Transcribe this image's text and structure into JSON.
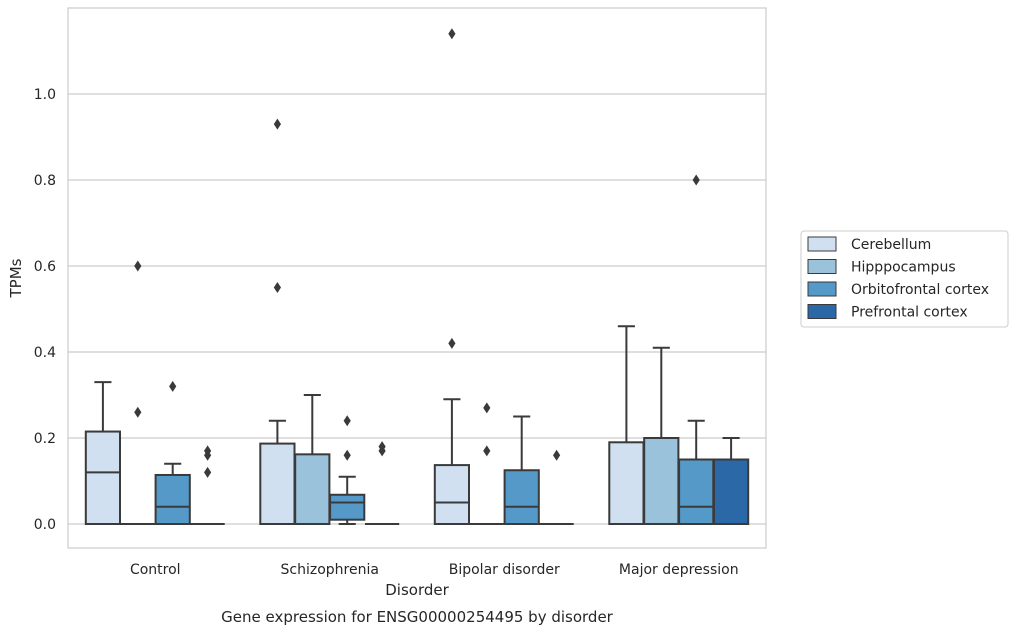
{
  "chart_data": {
    "type": "box",
    "title": "",
    "caption": "Gene expression for ENSG00000254495 by disorder",
    "xlabel": "Disorder",
    "ylabel": "TPMs",
    "ylim": [
      -0.055,
      1.2
    ],
    "yticks": [
      "0.0",
      "0.2",
      "0.4",
      "0.6",
      "0.8",
      "1.0"
    ],
    "grid": true,
    "legend_position": "right",
    "categories": [
      "Control",
      "Schizophrenia",
      "Bipolar disorder",
      "Major depression"
    ],
    "series": [
      {
        "name": "Cerebellum",
        "color": "#d0e0f0",
        "boxes": [
          {
            "whislo": 0,
            "q1": 0,
            "med": 0.12,
            "q3": 0.215,
            "whishi": 0.33,
            "fliers": []
          },
          {
            "whislo": 0,
            "q1": 0,
            "med": 0,
            "q3": 0.187,
            "whishi": 0.24,
            "fliers": [
              0.55,
              0.93
            ]
          },
          {
            "whislo": 0,
            "q1": 0,
            "med": 0.05,
            "q3": 0.137,
            "whishi": 0.29,
            "fliers": [
              0.42,
              1.14
            ]
          },
          {
            "whislo": 0,
            "q1": 0,
            "med": 0,
            "q3": 0.19,
            "whishi": 0.46,
            "fliers": []
          }
        ]
      },
      {
        "name": "Hipppocampus",
        "color": "#9ac2da",
        "boxes": [
          {
            "whislo": 0,
            "q1": 0,
            "med": 0,
            "q3": 0,
            "whishi": 0,
            "fliers": [
              0.26,
              0.6
            ]
          },
          {
            "whislo": 0,
            "q1": 0,
            "med": 0,
            "q3": 0.162,
            "whishi": 0.3,
            "fliers": []
          },
          {
            "whislo": 0,
            "q1": 0,
            "med": 0,
            "q3": 0,
            "whishi": 0,
            "fliers": [
              0.17,
              0.27
            ]
          },
          {
            "whislo": 0,
            "q1": 0,
            "med": 0,
            "q3": 0.2,
            "whishi": 0.41,
            "fliers": []
          }
        ]
      },
      {
        "name": "Orbitofrontal cortex",
        "color": "#5499c8",
        "boxes": [
          {
            "whislo": 0,
            "q1": 0,
            "med": 0.04,
            "q3": 0.114,
            "whishi": 0.14,
            "fliers": [
              0.32
            ]
          },
          {
            "whislo": 0,
            "q1": 0.01,
            "med": 0.05,
            "q3": 0.068,
            "whishi": 0.11,
            "fliers": [
              0.16,
              0.24
            ]
          },
          {
            "whislo": 0,
            "q1": 0,
            "med": 0.04,
            "q3": 0.125,
            "whishi": 0.25,
            "fliers": []
          },
          {
            "whislo": 0,
            "q1": 0,
            "med": 0.04,
            "q3": 0.15,
            "whishi": 0.24,
            "fliers": [
              0.8
            ]
          }
        ]
      },
      {
        "name": "Prefrontal cortex",
        "color": "#2a68a8",
        "boxes": [
          {
            "whislo": 0,
            "q1": 0,
            "med": 0,
            "q3": 0,
            "whishi": 0,
            "fliers": [
              0.12,
              0.16,
              0.17
            ]
          },
          {
            "whislo": 0,
            "q1": 0,
            "med": 0,
            "q3": 0,
            "whishi": 0,
            "fliers": [
              0.17,
              0.18
            ]
          },
          {
            "whislo": 0,
            "q1": 0,
            "med": 0,
            "q3": 0,
            "whishi": 0,
            "fliers": [
              0.16
            ]
          },
          {
            "whislo": 0,
            "q1": 0,
            "med": 0,
            "q3": 0.15,
            "whishi": 0.2,
            "fliers": []
          }
        ]
      }
    ]
  }
}
